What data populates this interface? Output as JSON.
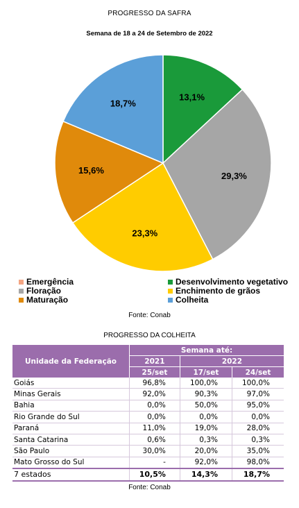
{
  "chart_data": {
    "type": "pie",
    "title": "PROGRESSO DA SAFRA",
    "subtitle": "Semana de 18 a 24 de Setembro de 2022",
    "categories": [
      "Emergência",
      "Desenvolvimento vegetativo",
      "Floração",
      "Enchimento de grãos",
      "Maturação",
      "Colheita"
    ],
    "values": [
      0,
      13.1,
      29.3,
      23.3,
      15.6,
      18.7
    ],
    "labels": [
      "",
      "13,1%",
      "29,3%",
      "23,3%",
      "15,6%",
      "18,7%"
    ],
    "colors": [
      "#f4a582",
      "#1a9a3a",
      "#a6a6a6",
      "#ffcc00",
      "#e08a0b",
      "#5b9fd8"
    ],
    "legend_position": "bottom",
    "source": "Fonte: Conab"
  },
  "table": {
    "title": "PROGRESSO DA COLHEITA",
    "header_uf": "Unidade da Federação",
    "header_semana": "Semana até:",
    "header_2021": "2021",
    "header_2022": "2022",
    "cols": [
      "25/set",
      "17/set",
      "24/set"
    ],
    "rows": [
      {
        "uf": "Goiás",
        "v": [
          "96,8%",
          "100,0%",
          "100,0%"
        ]
      },
      {
        "uf": "Minas Gerais",
        "v": [
          "92,0%",
          "90,3%",
          "97,0%"
        ]
      },
      {
        "uf": "Bahia",
        "v": [
          "0,0%",
          "50,0%",
          "95,0%"
        ]
      },
      {
        "uf": "Rio Grande do Sul",
        "v": [
          "0,0%",
          "0,0%",
          "0,0%"
        ]
      },
      {
        "uf": "Paraná",
        "v": [
          "11,0%",
          "19,0%",
          "28,0%"
        ]
      },
      {
        "uf": "Santa Catarina",
        "v": [
          "0,6%",
          "0,3%",
          "0,3%"
        ]
      },
      {
        "uf": "São Paulo",
        "v": [
          "30,0%",
          "20,0%",
          "35,0%"
        ]
      },
      {
        "uf": "Mato Grosso do Sul",
        "v": [
          "-",
          "92,0%",
          "98,0%"
        ]
      }
    ],
    "total": {
      "uf": "7 estados",
      "v": [
        "10,5%",
        "14,3%",
        "18,7%"
      ]
    },
    "source": "Fonte: Conab"
  }
}
